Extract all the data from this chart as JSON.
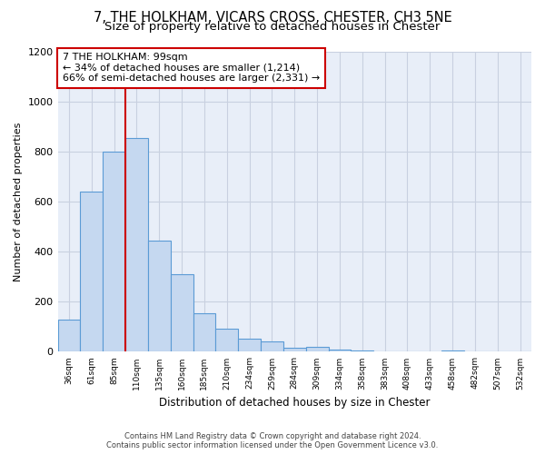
{
  "title": "7, THE HOLKHAM, VICARS CROSS, CHESTER, CH3 5NE",
  "subtitle": "Size of property relative to detached houses in Chester",
  "xlabel": "Distribution of detached houses by size in Chester",
  "ylabel": "Number of detached properties",
  "bin_labels": [
    "36sqm",
    "61sqm",
    "85sqm",
    "110sqm",
    "135sqm",
    "160sqm",
    "185sqm",
    "210sqm",
    "234sqm",
    "259sqm",
    "284sqm",
    "309sqm",
    "334sqm",
    "358sqm",
    "383sqm",
    "408sqm",
    "433sqm",
    "458sqm",
    "482sqm",
    "507sqm",
    "532sqm"
  ],
  "bar_heights": [
    130,
    640,
    800,
    855,
    445,
    310,
    155,
    93,
    52,
    42,
    15,
    20,
    10,
    5,
    2,
    0,
    0,
    5,
    0,
    0,
    0
  ],
  "bar_color": "#c5d8f0",
  "bar_edge_color": "#5b9bd5",
  "property_line_bin_index": 2.5,
  "vline_color": "#cc0000",
  "annotation_line1": "7 THE HOLKHAM: 99sqm",
  "annotation_line2": "← 34% of detached houses are smaller (1,214)",
  "annotation_line3": "66% of semi-detached houses are larger (2,331) →",
  "annotation_box_color": "#ffffff",
  "annotation_box_edge_color": "#cc0000",
  "ylim": [
    0,
    1200
  ],
  "yticks": [
    0,
    200,
    400,
    600,
    800,
    1000,
    1200
  ],
  "footer_line1": "Contains HM Land Registry data © Crown copyright and database right 2024.",
  "footer_line2": "Contains public sector information licensed under the Open Government Licence v3.0.",
  "background_color": "#ffffff",
  "plot_bg_color": "#e8eef8",
  "grid_color": "#c8d0e0",
  "title_fontsize": 10.5,
  "subtitle_fontsize": 9.5,
  "num_bins": 21
}
